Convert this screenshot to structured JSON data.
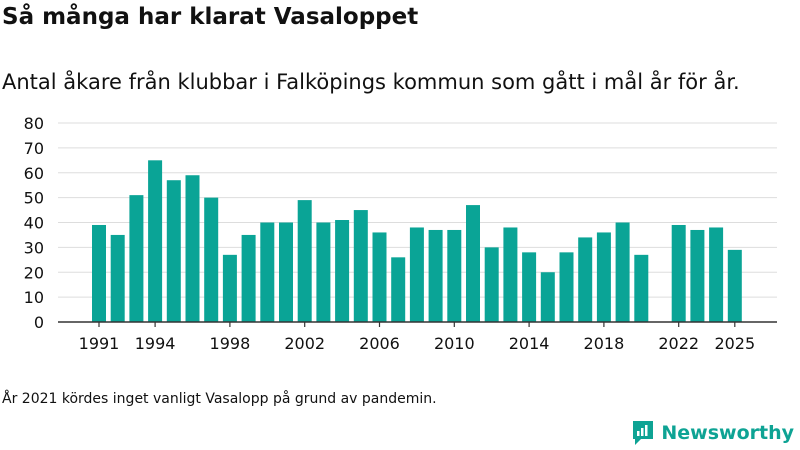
{
  "title": "Så många har klarat Vasaloppet",
  "subtitle": "Antal åkare från klubbar i Falköpings kommun som gått i mål år för år.",
  "footnote": "År 2021 kördes inget vanligt Vasalopp på grund av pandemin.",
  "brand": {
    "name": "Newsworthy",
    "logo_icon": "newsworthy-logo-icon"
  },
  "colors": {
    "bar": "#0aa496",
    "grid": "#dddddd",
    "axis": "#333333",
    "text": "#111111",
    "brand": "#0ea394"
  },
  "chart_data": {
    "type": "bar",
    "title": "Så många har klarat Vasaloppet",
    "subtitle": "Antal åkare från klubbar i Falköpings kommun som gått i mål år för år.",
    "x": [
      1991,
      1992,
      1993,
      1994,
      1995,
      1996,
      1997,
      1998,
      1999,
      2000,
      2001,
      2002,
      2003,
      2004,
      2005,
      2006,
      2007,
      2008,
      2009,
      2010,
      2011,
      2012,
      2013,
      2014,
      2015,
      2016,
      2017,
      2018,
      2019,
      2020,
      2021,
      2022,
      2023,
      2024,
      2025
    ],
    "values": [
      39,
      35,
      51,
      65,
      57,
      59,
      50,
      27,
      35,
      40,
      40,
      49,
      40,
      41,
      45,
      36,
      26,
      38,
      37,
      37,
      47,
      30,
      38,
      28,
      20,
      28,
      34,
      36,
      40,
      27,
      null,
      39,
      37,
      38,
      29
    ],
    "x_tick_labels": [
      "1991",
      "1994",
      "1998",
      "2002",
      "2006",
      "2010",
      "2014",
      "2018",
      "2022",
      "2025"
    ],
    "y_tick_labels": [
      "0",
      "10",
      "20",
      "30",
      "40",
      "50",
      "60",
      "70",
      "80"
    ],
    "ylim": [
      0,
      80
    ],
    "xlabel": "",
    "ylabel": "",
    "grid": true,
    "legend": "none"
  }
}
